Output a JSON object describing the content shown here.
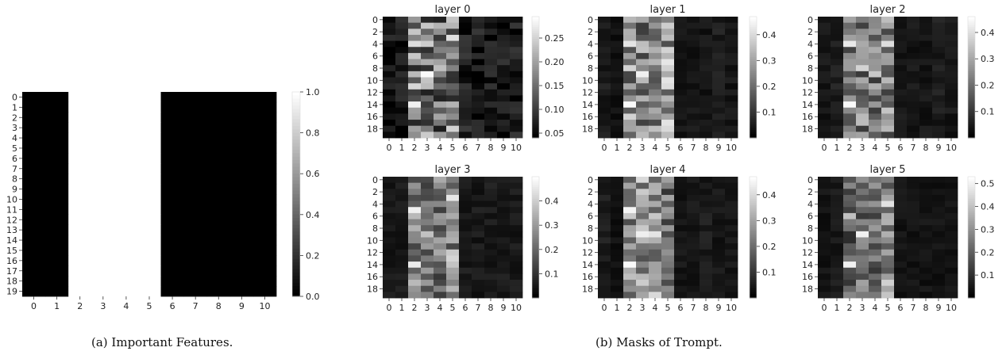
{
  "captions": {
    "a": "(a) Important Features.",
    "b": "(b) Masks of Trompt."
  },
  "chart_data": [
    {
      "type": "heatmap",
      "id": "important",
      "title": "",
      "x_ticks": [
        "0",
        "1",
        "2",
        "3",
        "4",
        "5",
        "6",
        "7",
        "8",
        "9",
        "10"
      ],
      "y_ticks": [
        "0",
        "1",
        "2",
        "3",
        "4",
        "5",
        "6",
        "7",
        "8",
        "9",
        "10",
        "11",
        "12",
        "13",
        "14",
        "15",
        "16",
        "17",
        "18",
        "19"
      ],
      "n_rows": 20,
      "n_cols": 11,
      "column_values": [
        0,
        0,
        1,
        1,
        1,
        1,
        0,
        0,
        0,
        0,
        0
      ],
      "colorbar": {
        "min": 0.0,
        "max": 1.0,
        "ticks": [
          "0.0",
          "0.2",
          "0.4",
          "0.6",
          "0.8",
          "1.0"
        ]
      },
      "colormap": "gray"
    },
    {
      "type": "heatmap",
      "id": "layer0",
      "title": "layer 0",
      "x_ticks": [
        "0",
        "1",
        "2",
        "3",
        "4",
        "5",
        "6",
        "7",
        "8",
        "9",
        "10"
      ],
      "y_ticks": [
        "0",
        "2",
        "4",
        "6",
        "8",
        "10",
        "12",
        "14",
        "16",
        "18"
      ],
      "n_rows": 20,
      "n_cols": 11,
      "vmin": 0.04,
      "vmax": 0.295,
      "colorbar": {
        "ticks": [
          "0.05",
          "0.10",
          "0.15",
          "0.20",
          "0.25"
        ]
      },
      "column_means": [
        0.06,
        0.06,
        0.17,
        0.16,
        0.15,
        0.17,
        0.07,
        0.065,
        0.065,
        0.065,
        0.065
      ],
      "hot_cells": [
        [
          4,
          2,
          0.26
        ],
        [
          9,
          3,
          0.29
        ],
        [
          14,
          2,
          0.28
        ],
        [
          6,
          2,
          0.24
        ],
        [
          1,
          4,
          0.22
        ]
      ]
    },
    {
      "type": "heatmap",
      "id": "layer1",
      "title": "layer 1",
      "x_ticks": [
        "0",
        "1",
        "2",
        "3",
        "4",
        "5",
        "6",
        "7",
        "8",
        "9",
        "10"
      ],
      "y_ticks": [
        "0",
        "2",
        "4",
        "6",
        "8",
        "10",
        "12",
        "14",
        "16",
        "18"
      ],
      "n_rows": 20,
      "n_cols": 11,
      "vmin": 0.0,
      "vmax": 0.47,
      "colorbar": {
        "ticks": [
          "0.1",
          "0.2",
          "0.3",
          "0.4"
        ]
      },
      "column_means": [
        0.05,
        0.03,
        0.26,
        0.24,
        0.25,
        0.28,
        0.04,
        0.04,
        0.04,
        0.05,
        0.04
      ],
      "hot_cells": [
        [
          4,
          2,
          0.42
        ],
        [
          9,
          3,
          0.44
        ],
        [
          14,
          2,
          0.46
        ],
        [
          1,
          5,
          0.38
        ]
      ]
    },
    {
      "type": "heatmap",
      "id": "layer2",
      "title": "layer 2",
      "x_ticks": [
        "0",
        "1",
        "2",
        "3",
        "4",
        "5",
        "6",
        "7",
        "8",
        "9",
        "10"
      ],
      "y_ticks": [
        "0",
        "2",
        "4",
        "6",
        "8",
        "10",
        "12",
        "14",
        "16",
        "18"
      ],
      "n_rows": 20,
      "n_cols": 11,
      "vmin": 0.0,
      "vmax": 0.46,
      "colorbar": {
        "ticks": [
          "0.1",
          "0.2",
          "0.3",
          "0.4"
        ]
      },
      "column_means": [
        0.04,
        0.05,
        0.2,
        0.22,
        0.21,
        0.24,
        0.04,
        0.04,
        0.04,
        0.05,
        0.04
      ],
      "hot_cells": [
        [
          4,
          2,
          0.42
        ],
        [
          4,
          5,
          0.4
        ],
        [
          8,
          3,
          0.38
        ],
        [
          14,
          2,
          0.45
        ],
        [
          9,
          4,
          0.36
        ]
      ]
    },
    {
      "type": "heatmap",
      "id": "layer3",
      "title": "layer 3",
      "x_ticks": [
        "0",
        "1",
        "2",
        "3",
        "4",
        "5",
        "6",
        "7",
        "8",
        "9",
        "10"
      ],
      "y_ticks": [
        "0",
        "2",
        "4",
        "6",
        "8",
        "10",
        "12",
        "14",
        "16",
        "18"
      ],
      "n_rows": 20,
      "n_cols": 11,
      "vmin": 0.0,
      "vmax": 0.5,
      "colorbar": {
        "ticks": [
          "0.1",
          "0.2",
          "0.3",
          "0.4"
        ]
      },
      "column_means": [
        0.05,
        0.05,
        0.26,
        0.2,
        0.22,
        0.27,
        0.05,
        0.05,
        0.05,
        0.05,
        0.05
      ],
      "hot_cells": [
        [
          5,
          2,
          0.47
        ],
        [
          3,
          5,
          0.45
        ],
        [
          14,
          2,
          0.46
        ],
        [
          9,
          3,
          0.38
        ]
      ]
    },
    {
      "type": "heatmap",
      "id": "layer4",
      "title": "layer 4",
      "x_ticks": [
        "0",
        "1",
        "2",
        "3",
        "4",
        "5",
        "6",
        "7",
        "8",
        "9",
        "10"
      ],
      "y_ticks": [
        "0",
        "2",
        "4",
        "6",
        "8",
        "10",
        "12",
        "14",
        "16",
        "18"
      ],
      "n_rows": 20,
      "n_cols": 11,
      "vmin": 0.0,
      "vmax": 0.47,
      "colorbar": {
        "ticks": [
          "0.1",
          "0.2",
          "0.3",
          "0.4"
        ]
      },
      "column_means": [
        0.05,
        0.03,
        0.24,
        0.26,
        0.24,
        0.2,
        0.04,
        0.04,
        0.05,
        0.04,
        0.04
      ],
      "hot_cells": [
        [
          5,
          2,
          0.45
        ],
        [
          9,
          3,
          0.44
        ],
        [
          9,
          4,
          0.42
        ],
        [
          14,
          2,
          0.46
        ],
        [
          19,
          4,
          0.4
        ]
      ]
    },
    {
      "type": "heatmap",
      "id": "layer5",
      "title": "layer 5",
      "x_ticks": [
        "0",
        "1",
        "2",
        "3",
        "4",
        "5",
        "6",
        "7",
        "8",
        "9",
        "10"
      ],
      "y_ticks": [
        "0",
        "2",
        "4",
        "6",
        "8",
        "10",
        "12",
        "14",
        "16",
        "18"
      ],
      "n_rows": 20,
      "n_cols": 11,
      "vmin": 0.0,
      "vmax": 0.53,
      "colorbar": {
        "ticks": [
          "0.1",
          "0.2",
          "0.3",
          "0.4",
          "0.5"
        ]
      },
      "column_means": [
        0.04,
        0.05,
        0.2,
        0.24,
        0.22,
        0.28,
        0.04,
        0.04,
        0.04,
        0.04,
        0.04
      ],
      "hot_cells": [
        [
          9,
          3,
          0.5
        ],
        [
          14,
          2,
          0.5
        ],
        [
          4,
          5,
          0.47
        ],
        [
          6,
          2,
          0.4
        ]
      ]
    }
  ]
}
